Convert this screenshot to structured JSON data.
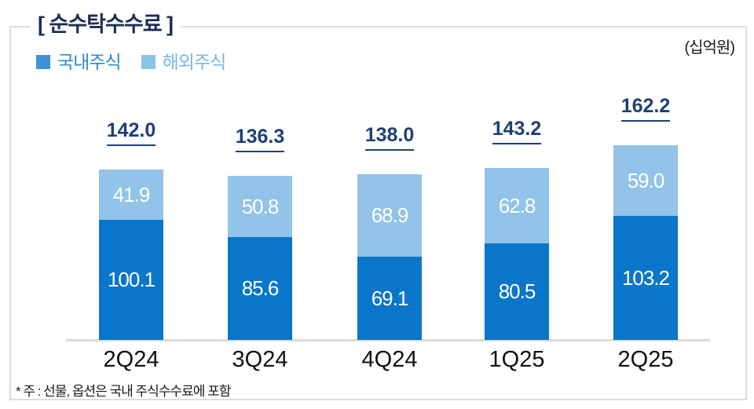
{
  "header": {
    "title": "[ 순수탁수수료 ]",
    "unit": "(십억원)"
  },
  "legend": [
    {
      "label": "국내주식",
      "swatch_color": "#3d93d5",
      "text_color": "#2f89cd"
    },
    {
      "label": "해외주식",
      "swatch_color": "#8ec3e9",
      "text_color": "#77b6e3"
    }
  ],
  "footnote": "* 주 : 선물, 옵션은 국내 주식수수료에 포함",
  "colors": {
    "domestic_bar": "#0a76c9",
    "overseas_bar": "#92c3e8",
    "total_label": "#1c4076",
    "axis_line": "#dbdbdb",
    "frame_border": "#dcdcdc"
  },
  "chart_data": {
    "type": "bar",
    "stacked": true,
    "title": "순수탁수수료",
    "unit": "십억원",
    "categories": [
      "2Q24",
      "3Q24",
      "4Q24",
      "1Q25",
      "2Q25"
    ],
    "series": [
      {
        "name": "국내주식",
        "color": "#0a76c9",
        "values": [
          100.1,
          85.6,
          69.1,
          80.5,
          103.2
        ]
      },
      {
        "name": "해외주식",
        "color": "#92c3e8",
        "values": [
          41.9,
          50.8,
          68.9,
          62.8,
          59.0
        ]
      }
    ],
    "totals": [
      142.0,
      136.3,
      138.0,
      143.2,
      162.2
    ],
    "value_decimals": 1,
    "legend_position": "top-left",
    "grid": false,
    "ylim": [
      0,
      170
    ]
  }
}
